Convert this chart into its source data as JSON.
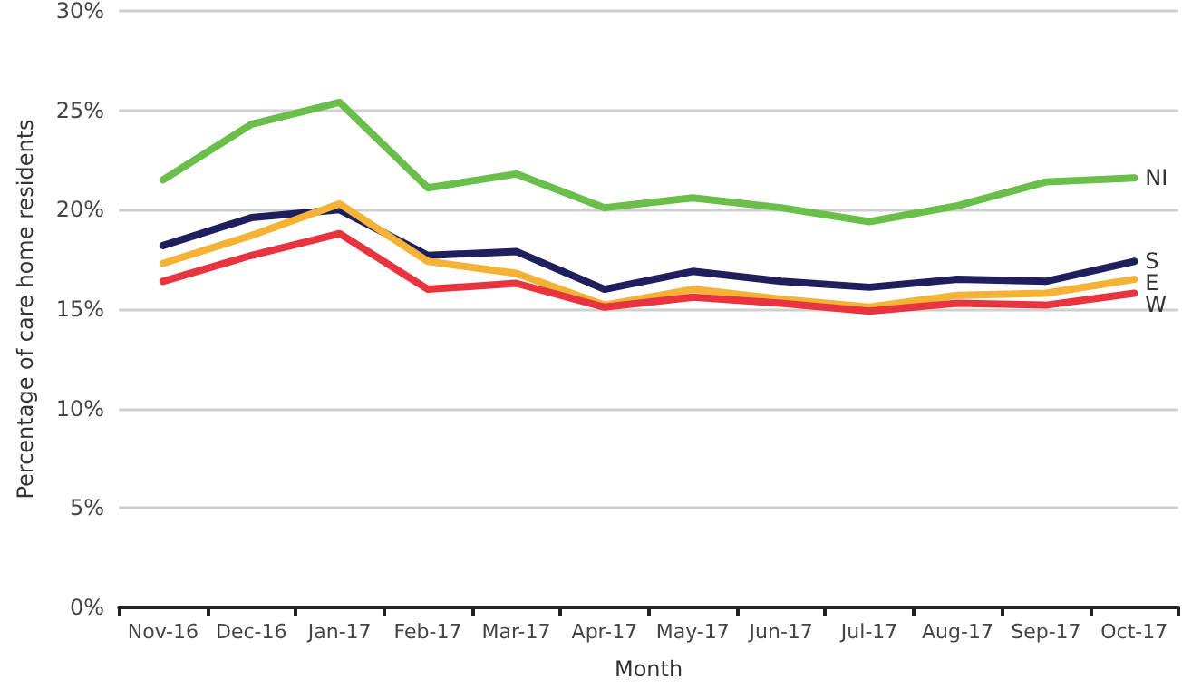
{
  "chart_data": {
    "type": "line",
    "xlabel": "Month",
    "ylabel": "Percentage of care home residents",
    "categories": [
      "Nov-16",
      "Dec-16",
      "Jan-17",
      "Feb-17",
      "Mar-17",
      "Apr-17",
      "May-17",
      "Jun-17",
      "Jul-17",
      "Aug-17",
      "Sep-17",
      "Oct-17"
    ],
    "series": [
      {
        "name": "NI",
        "color": "#6abf4b",
        "values": [
          21.5,
          24.3,
          25.4,
          21.1,
          21.8,
          20.1,
          20.6,
          20.1,
          19.4,
          20.2,
          21.4,
          21.6
        ]
      },
      {
        "name": "S",
        "color": "#1f1f5e",
        "values": [
          18.2,
          19.6,
          20.0,
          17.7,
          17.9,
          16.0,
          16.9,
          16.4,
          16.1,
          16.5,
          16.4,
          17.4
        ]
      },
      {
        "name": "E",
        "color": "#f5b335",
        "values": [
          17.3,
          18.7,
          20.3,
          17.4,
          16.8,
          15.2,
          16.0,
          15.5,
          15.1,
          15.7,
          15.8,
          16.5
        ]
      },
      {
        "name": "W",
        "color": "#e8343f",
        "values": [
          16.4,
          17.7,
          18.8,
          16.0,
          16.3,
          15.1,
          15.6,
          15.3,
          14.9,
          15.3,
          15.2,
          15.8
        ]
      }
    ],
    "ylim": [
      0,
      30
    ],
    "yticks": [
      {
        "value": 0,
        "label": "0%"
      },
      {
        "value": 5,
        "label": "5%"
      },
      {
        "value": 10,
        "label": "10%"
      },
      {
        "value": 15,
        "label": "15%"
      },
      {
        "value": 20,
        "label": "20%"
      },
      {
        "value": 25,
        "label": "25%"
      },
      {
        "value": 30,
        "label": "30%"
      }
    ],
    "grid": "y",
    "legend": false,
    "marker": "none",
    "line_style": "solid"
  }
}
